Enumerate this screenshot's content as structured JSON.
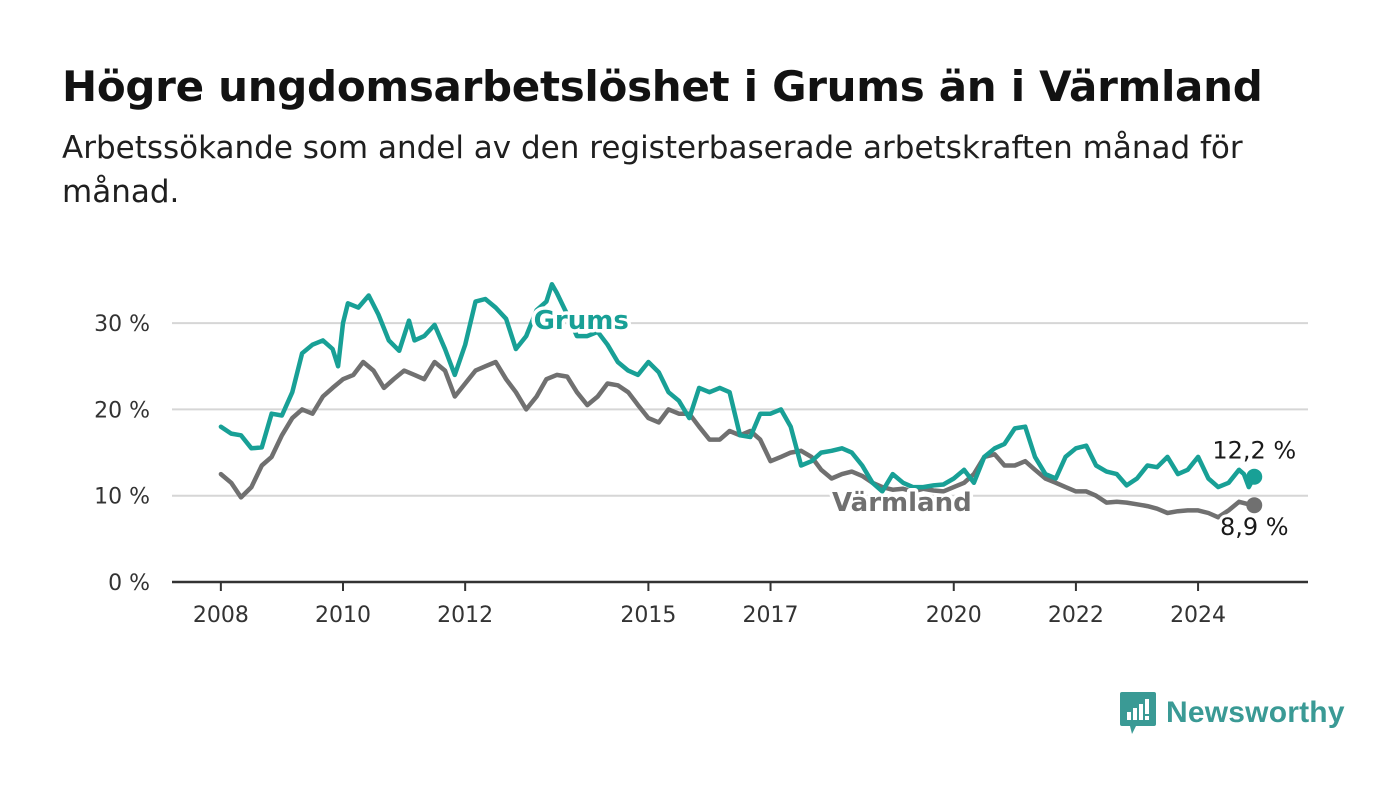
{
  "header": {
    "title": "Högre ungdomsarbetslöshet i Grums än i Värmland",
    "subtitle": "Arbetssökande som andel av den registerbaserade arbetskraften månad för månad."
  },
  "logo": {
    "text": "Newsworthy",
    "icon": "newsworthy-chart-icon",
    "color": "#3a9a95"
  },
  "chart_data": {
    "type": "line",
    "title": "Högre ungdomsarbetslöshet i Grums än i Värmland",
    "subtitle": "Arbetssökande som andel av den registerbaserade arbetskraften månad för månad.",
    "xlabel": "",
    "ylabel": "",
    "ylim": [
      0,
      35
    ],
    "xlim": [
      2007.2,
      2025.8
    ],
    "grid": true,
    "y_ticks": [
      0,
      10,
      20,
      30
    ],
    "y_tick_labels": [
      "0 %",
      "10 %",
      "20 %",
      "30 %"
    ],
    "x_ticks": [
      2008,
      2010,
      2012,
      2015,
      2017,
      2020,
      2022,
      2024
    ],
    "x_tick_labels": [
      "2008",
      "2010",
      "2012",
      "2015",
      "2017",
      "2020",
      "2022",
      "2024"
    ],
    "series": [
      {
        "name": "Grums",
        "color": "#18a096",
        "end_label": "12,2 %",
        "points": [
          [
            2008.0,
            18.0
          ],
          [
            2008.17,
            17.2
          ],
          [
            2008.33,
            17.0
          ],
          [
            2008.5,
            15.5
          ],
          [
            2008.67,
            15.6
          ],
          [
            2008.83,
            19.5
          ],
          [
            2009.0,
            19.3
          ],
          [
            2009.17,
            22.0
          ],
          [
            2009.33,
            26.5
          ],
          [
            2009.5,
            27.5
          ],
          [
            2009.67,
            28.0
          ],
          [
            2009.83,
            27.0
          ],
          [
            2009.92,
            25.0
          ],
          [
            2010.0,
            30.0
          ],
          [
            2010.08,
            32.3
          ],
          [
            2010.25,
            31.8
          ],
          [
            2010.42,
            33.2
          ],
          [
            2010.58,
            31.0
          ],
          [
            2010.75,
            28.0
          ],
          [
            2010.92,
            26.8
          ],
          [
            2011.08,
            30.3
          ],
          [
            2011.17,
            28.0
          ],
          [
            2011.33,
            28.5
          ],
          [
            2011.5,
            29.8
          ],
          [
            2011.67,
            27.0
          ],
          [
            2011.83,
            24.0
          ],
          [
            2012.0,
            27.5
          ],
          [
            2012.17,
            32.5
          ],
          [
            2012.33,
            32.8
          ],
          [
            2012.5,
            31.8
          ],
          [
            2012.67,
            30.5
          ],
          [
            2012.83,
            27.0
          ],
          [
            2013.0,
            28.5
          ],
          [
            2013.17,
            31.5
          ],
          [
            2013.33,
            32.5
          ],
          [
            2013.42,
            34.5
          ],
          [
            2013.5,
            33.5
          ],
          [
            2013.67,
            31.0
          ],
          [
            2013.83,
            28.5
          ],
          [
            2014.0,
            28.5
          ],
          [
            2014.17,
            29.0
          ],
          [
            2014.33,
            27.5
          ],
          [
            2014.5,
            25.5
          ],
          [
            2014.67,
            24.5
          ],
          [
            2014.83,
            24.0
          ],
          [
            2015.0,
            25.5
          ],
          [
            2015.17,
            24.3
          ],
          [
            2015.33,
            22.0
          ],
          [
            2015.5,
            21.0
          ],
          [
            2015.67,
            19.0
          ],
          [
            2015.83,
            22.5
          ],
          [
            2016.0,
            22.0
          ],
          [
            2016.17,
            22.5
          ],
          [
            2016.33,
            22.0
          ],
          [
            2016.5,
            17.0
          ],
          [
            2016.67,
            16.8
          ],
          [
            2016.83,
            19.5
          ],
          [
            2017.0,
            19.5
          ],
          [
            2017.17,
            20.0
          ],
          [
            2017.33,
            18.0
          ],
          [
            2017.5,
            13.5
          ],
          [
            2017.67,
            14.0
          ],
          [
            2017.83,
            15.0
          ],
          [
            2018.0,
            15.2
          ],
          [
            2018.17,
            15.5
          ],
          [
            2018.33,
            15.0
          ],
          [
            2018.5,
            13.5
          ],
          [
            2018.67,
            11.5
          ],
          [
            2018.83,
            10.5
          ],
          [
            2019.0,
            12.5
          ],
          [
            2019.17,
            11.5
          ],
          [
            2019.33,
            11.0
          ],
          [
            2019.5,
            11.0
          ],
          [
            2019.67,
            11.2
          ],
          [
            2019.83,
            11.3
          ],
          [
            2020.0,
            12.0
          ],
          [
            2020.17,
            13.0
          ],
          [
            2020.33,
            11.5
          ],
          [
            2020.5,
            14.5
          ],
          [
            2020.67,
            15.5
          ],
          [
            2020.83,
            16.0
          ],
          [
            2021.0,
            17.8
          ],
          [
            2021.17,
            18.0
          ],
          [
            2021.33,
            14.5
          ],
          [
            2021.5,
            12.5
          ],
          [
            2021.67,
            12.0
          ],
          [
            2021.83,
            14.5
          ],
          [
            2022.0,
            15.5
          ],
          [
            2022.17,
            15.8
          ],
          [
            2022.33,
            13.5
          ],
          [
            2022.5,
            12.8
          ],
          [
            2022.67,
            12.5
          ],
          [
            2022.83,
            11.2
          ],
          [
            2023.0,
            12.0
          ],
          [
            2023.17,
            13.5
          ],
          [
            2023.33,
            13.3
          ],
          [
            2023.5,
            14.5
          ],
          [
            2023.67,
            12.5
          ],
          [
            2023.83,
            13.0
          ],
          [
            2024.0,
            14.5
          ],
          [
            2024.17,
            12.0
          ],
          [
            2024.33,
            11.0
          ],
          [
            2024.5,
            11.5
          ],
          [
            2024.67,
            13.0
          ],
          [
            2024.75,
            12.5
          ],
          [
            2024.83,
            11.0
          ],
          [
            2024.92,
            12.2
          ]
        ]
      },
      {
        "name": "Värmland",
        "color": "#707070",
        "end_label": "8,9 %",
        "points": [
          [
            2008.0,
            12.5
          ],
          [
            2008.17,
            11.5
          ],
          [
            2008.33,
            9.8
          ],
          [
            2008.5,
            11.0
          ],
          [
            2008.67,
            13.5
          ],
          [
            2008.83,
            14.5
          ],
          [
            2009.0,
            17.0
          ],
          [
            2009.17,
            19.0
          ],
          [
            2009.33,
            20.0
          ],
          [
            2009.5,
            19.5
          ],
          [
            2009.67,
            21.5
          ],
          [
            2009.83,
            22.5
          ],
          [
            2010.0,
            23.5
          ],
          [
            2010.17,
            24.0
          ],
          [
            2010.33,
            25.5
          ],
          [
            2010.5,
            24.5
          ],
          [
            2010.67,
            22.5
          ],
          [
            2010.83,
            23.5
          ],
          [
            2011.0,
            24.5
          ],
          [
            2011.17,
            24.0
          ],
          [
            2011.33,
            23.5
          ],
          [
            2011.5,
            25.5
          ],
          [
            2011.67,
            24.5
          ],
          [
            2011.83,
            21.5
          ],
          [
            2012.0,
            23.0
          ],
          [
            2012.17,
            24.5
          ],
          [
            2012.33,
            25.0
          ],
          [
            2012.5,
            25.5
          ],
          [
            2012.67,
            23.5
          ],
          [
            2012.83,
            22.0
          ],
          [
            2013.0,
            20.0
          ],
          [
            2013.17,
            21.5
          ],
          [
            2013.33,
            23.5
          ],
          [
            2013.5,
            24.0
          ],
          [
            2013.67,
            23.8
          ],
          [
            2013.83,
            22.0
          ],
          [
            2014.0,
            20.5
          ],
          [
            2014.17,
            21.5
          ],
          [
            2014.33,
            23.0
          ],
          [
            2014.5,
            22.8
          ],
          [
            2014.67,
            22.0
          ],
          [
            2014.83,
            20.5
          ],
          [
            2015.0,
            19.0
          ],
          [
            2015.17,
            18.5
          ],
          [
            2015.33,
            20.0
          ],
          [
            2015.5,
            19.5
          ],
          [
            2015.67,
            19.5
          ],
          [
            2015.83,
            18.0
          ],
          [
            2016.0,
            16.5
          ],
          [
            2016.17,
            16.5
          ],
          [
            2016.33,
            17.5
          ],
          [
            2016.5,
            17.0
          ],
          [
            2016.67,
            17.5
          ],
          [
            2016.83,
            16.5
          ],
          [
            2017.0,
            14.0
          ],
          [
            2017.17,
            14.5
          ],
          [
            2017.33,
            15.0
          ],
          [
            2017.5,
            15.2
          ],
          [
            2017.67,
            14.5
          ],
          [
            2017.83,
            13.0
          ],
          [
            2018.0,
            12.0
          ],
          [
            2018.17,
            12.5
          ],
          [
            2018.33,
            12.8
          ],
          [
            2018.5,
            12.3
          ],
          [
            2018.67,
            11.5
          ],
          [
            2018.83,
            11.0
          ],
          [
            2019.0,
            10.7
          ],
          [
            2019.17,
            10.8
          ],
          [
            2019.33,
            10.5
          ],
          [
            2019.5,
            10.8
          ],
          [
            2019.67,
            10.6
          ],
          [
            2019.83,
            10.5
          ],
          [
            2020.0,
            11.0
          ],
          [
            2020.17,
            11.5
          ],
          [
            2020.33,
            12.5
          ],
          [
            2020.5,
            14.5
          ],
          [
            2020.67,
            14.8
          ],
          [
            2020.83,
            13.5
          ],
          [
            2021.0,
            13.5
          ],
          [
            2021.17,
            14.0
          ],
          [
            2021.33,
            13.0
          ],
          [
            2021.5,
            12.0
          ],
          [
            2021.67,
            11.5
          ],
          [
            2021.83,
            11.0
          ],
          [
            2022.0,
            10.5
          ],
          [
            2022.17,
            10.5
          ],
          [
            2022.33,
            10.0
          ],
          [
            2022.5,
            9.2
          ],
          [
            2022.67,
            9.3
          ],
          [
            2022.83,
            9.2
          ],
          [
            2023.0,
            9.0
          ],
          [
            2023.17,
            8.8
          ],
          [
            2023.33,
            8.5
          ],
          [
            2023.5,
            8.0
          ],
          [
            2023.67,
            8.2
          ],
          [
            2023.83,
            8.3
          ],
          [
            2024.0,
            8.3
          ],
          [
            2024.17,
            8.0
          ],
          [
            2024.33,
            7.5
          ],
          [
            2024.5,
            8.3
          ],
          [
            2024.67,
            9.3
          ],
          [
            2024.83,
            9.0
          ],
          [
            2024.92,
            8.9
          ]
        ]
      }
    ]
  }
}
